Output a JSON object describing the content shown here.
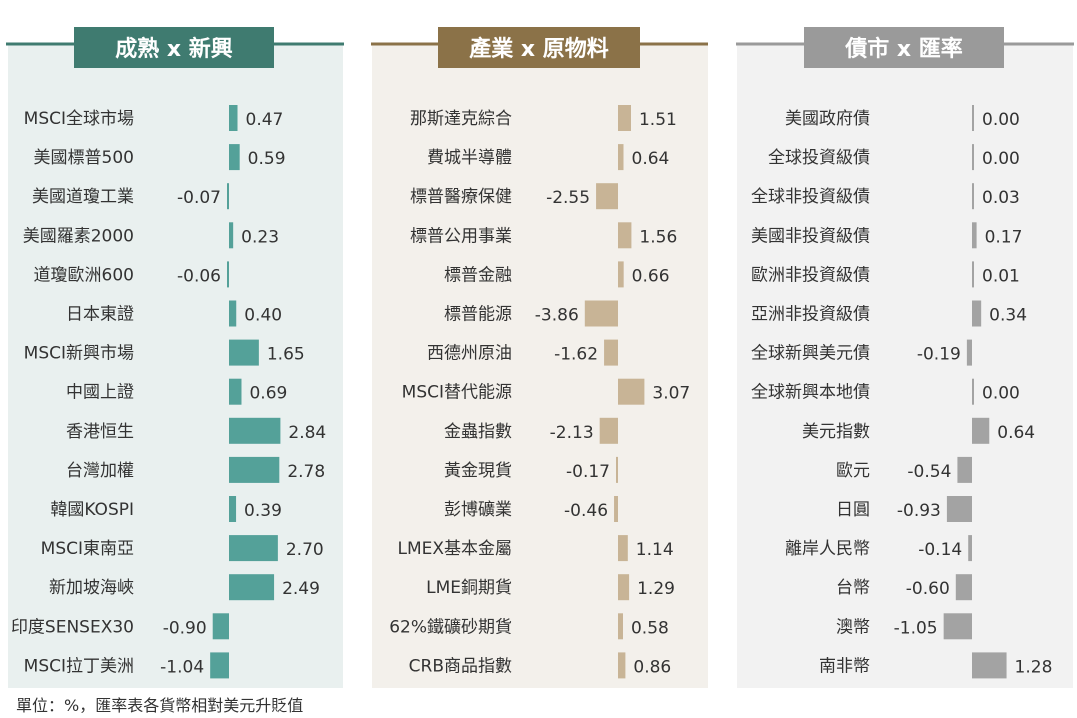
{
  "footnote": "單位：%，匯率表各貨幣相對美元升貶值",
  "chart_data": [
    {
      "type": "bar",
      "orientation": "horizontal",
      "title": "成熟 x 新興",
      "accent": "#3f7b70",
      "bar_color": "#54a199",
      "panel_bg": "#e9f0ef",
      "categories": [
        "MSCI全球市場",
        "美國標普500",
        "美國道瓊工業",
        "美國羅素2000",
        "道瓊歐洲600",
        "日本東證",
        "MSCI新興市場",
        "中國上證",
        "香港恒生",
        "台灣加權",
        "韓國KOSPI",
        "MSCI東南亞",
        "新加坡海峽",
        "印度SENSEX30",
        "MSCI拉丁美洲"
      ],
      "values": [
        0.47,
        0.59,
        -0.07,
        0.23,
        -0.06,
        0.4,
        1.65,
        0.69,
        2.84,
        2.78,
        0.39,
        2.7,
        2.49,
        -0.9,
        -1.04
      ],
      "labels": [
        "0.47",
        "0.59",
        "-0.07",
        "0.23",
        "-0.06",
        "0.40",
        "1.65",
        "0.69",
        "2.84",
        "2.78",
        "0.39",
        "2.70",
        "2.49",
        "-0.90",
        "-1.04"
      ]
    },
    {
      "type": "bar",
      "orientation": "horizontal",
      "title": "產業 x 原物料",
      "accent": "#8b7248",
      "bar_color": "#c8b496",
      "panel_bg": "#f3f0eb",
      "categories": [
        "那斯達克綜合",
        "費城半導體",
        "標普醫療保健",
        "標普公用事業",
        "標普金融",
        "標普能源",
        "西德州原油",
        "MSCI替代能源",
        "金蟲指數",
        "黃金現貨",
        "彭博礦業",
        "LMEX基本金屬",
        "LME銅期貨",
        "62%鐵礦砂期貨",
        "CRB商品指數"
      ],
      "values": [
        1.51,
        0.64,
        -2.55,
        1.56,
        0.66,
        -3.86,
        -1.62,
        3.07,
        -2.13,
        -0.17,
        -0.46,
        1.14,
        1.29,
        0.58,
        0.86
      ],
      "labels": [
        "1.51",
        "0.64",
        "-2.55",
        "1.56",
        "0.66",
        "-3.86",
        "-1.62",
        "3.07",
        "-2.13",
        "-0.17",
        "-0.46",
        "1.14",
        "1.29",
        "0.58",
        "0.86"
      ]
    },
    {
      "type": "bar",
      "orientation": "horizontal",
      "title": "債市 x 匯率",
      "accent": "#9a9a9a",
      "bar_color": "#a3a3a3",
      "panel_bg": "#f2f2f2",
      "categories": [
        "美國政府債",
        "全球投資級債",
        "全球非投資級債",
        "美國非投資級債",
        "歐洲非投資級債",
        "亞洲非投資級債",
        "全球新興美元債",
        "全球新興本地債",
        "美元指數",
        "歐元",
        "日圓",
        "離岸人民幣",
        "台幣",
        "澳幣",
        "南非幣"
      ],
      "values": [
        0.0,
        0.0,
        0.03,
        0.17,
        0.01,
        0.34,
        -0.19,
        0.0,
        0.64,
        -0.54,
        -0.93,
        -0.14,
        -0.6,
        -1.05,
        1.28
      ],
      "labels": [
        "0.00",
        "0.00",
        "0.03",
        "0.17",
        "0.01",
        "0.34",
        "-0.19",
        "0.00",
        "0.64",
        "-0.54",
        "-0.93",
        "-0.14",
        "-0.60",
        "-1.05",
        "1.28"
      ]
    }
  ]
}
